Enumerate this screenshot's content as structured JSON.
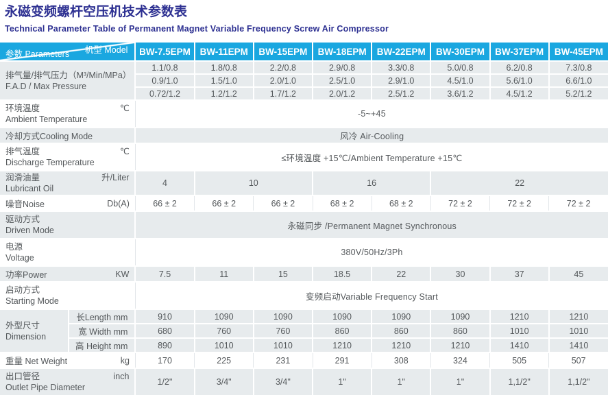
{
  "page": {
    "title": "永磁变频螺杆空压机技术参数表",
    "subtitle": "Technical Parameter Table of Permanent Magnet Variable Frequency Screw Air Compressor"
  },
  "colors": {
    "accent_cyan": "#1aa7e0",
    "title_navy": "#2e3192",
    "row_band": "#e7ebed",
    "text": "#54585b"
  },
  "table": {
    "corner": {
      "model": "机型 Model",
      "parameters": "参数 Parameters"
    },
    "models": [
      "BW-7.5EPM",
      "BW-11EPM",
      "BW-15EPM",
      "BW-18EPM",
      "BW-22EPM",
      "BW-30EPM",
      "BW-37EPM",
      "BW-45EPM"
    ],
    "rows": [
      {
        "kind": "group",
        "band": true,
        "label_zh": "排气量/排气压力（M³/Min/MPa）",
        "label_en": "F.A.D / Max Pressure",
        "unit": "",
        "subrows": [
          [
            "1.1/0.8",
            "1.8/0.8",
            "2.2/0.8",
            "2.9/0.8",
            "3.3/0.8",
            "5.0/0.8",
            "6.2/0.8",
            "7.3/0.8"
          ],
          [
            "0.9/1.0",
            "1.5/1.0",
            "2.0/1.0",
            "2.5/1.0",
            "2.9/1.0",
            "4.5/1.0",
            "5.6/1.0",
            "6.6/1.0"
          ],
          [
            "0.72/1.2",
            "1.2/1.2",
            "1.7/1.2",
            "2.0/1.2",
            "2.5/1.2",
            "3.6/1.2",
            "4.5/1.2",
            "5.2/1.2"
          ]
        ]
      },
      {
        "kind": "twoline",
        "band": false,
        "label_zh": "环境温度",
        "label_en": "Ambient Temperature",
        "unit": "℃",
        "merged": "-5~+45"
      },
      {
        "kind": "oneline-merged",
        "band": true,
        "label_zh": "冷却方式Cooling  Mode",
        "unit": "",
        "merged": "风冷 Air-Cooling"
      },
      {
        "kind": "twoline",
        "band": false,
        "label_zh": "排气温度",
        "label_en": "Discharge Temperature",
        "unit": "℃",
        "merged": "≤环境温度 +15℃/Ambient Temperature  +15℃"
      },
      {
        "kind": "spans",
        "band": true,
        "label_zh": "润滑油量",
        "label_en": "Lubricant Oil",
        "unit": "升/Liter",
        "spans": [
          {
            "text": "4",
            "span": 1
          },
          {
            "text": "10",
            "span": 2
          },
          {
            "text": "16",
            "span": 2
          },
          {
            "text": "22",
            "span": 3
          }
        ]
      },
      {
        "kind": "oneline",
        "band": false,
        "label_zh": "噪音Noise",
        "unit": "Db(A)",
        "values": [
          "66 ± 2",
          "66 ± 2",
          "66 ± 2",
          "68 ± 2",
          "68 ± 2",
          "72 ± 2",
          "72 ± 2",
          "72 ± 2"
        ]
      },
      {
        "kind": "twoline",
        "band": true,
        "label_zh": "驱动方式",
        "label_en": "Driven Mode",
        "unit": "",
        "merged": "永磁同步 /Permanent Magnet Synchronous"
      },
      {
        "kind": "twoline",
        "band": false,
        "label_zh": "电源",
        "label_en": "Voltage",
        "unit": "",
        "merged": "380V/50Hz/3Ph"
      },
      {
        "kind": "oneline",
        "band": true,
        "label_zh": "功率Power",
        "unit": "KW",
        "values": [
          "7.5",
          "11",
          "15",
          "18.5",
          "22",
          "30",
          "37",
          "45"
        ]
      },
      {
        "kind": "twoline",
        "band": false,
        "label_zh": "启动方式",
        "label_en": "Starting Mode",
        "unit": "",
        "merged": "变频启动Variable Frequency Start"
      },
      {
        "kind": "dimgroup",
        "band": true,
        "label_zh": "外型尺寸",
        "label_en": "Dimension",
        "subrows": [
          {
            "sublabel": "长Length mm",
            "values": [
              "910",
              "1090",
              "1090",
              "1090",
              "1090",
              "1090",
              "1210",
              "1210"
            ]
          },
          {
            "sublabel": "宽 Width mm",
            "values": [
              "680",
              "760",
              "760",
              "860",
              "860",
              "860",
              "1010",
              "1010"
            ]
          },
          {
            "sublabel": "高 Height mm",
            "values": [
              "890",
              "1010",
              "1010",
              "1210",
              "1210",
              "1210",
              "1410",
              "1410"
            ]
          }
        ]
      },
      {
        "kind": "oneline",
        "band": false,
        "label_zh": "重量 Net Weight",
        "unit": "kg",
        "values": [
          "170",
          "225",
          "231",
          "291",
          "308",
          "324",
          "505",
          "507"
        ]
      },
      {
        "kind": "twoline",
        "band": true,
        "label_zh": "出口管径",
        "label_en": "Outlet Pipe Diameter",
        "unit": "inch",
        "values": [
          "1/2\"",
          "3/4\"",
          "3/4\"",
          "1\"",
          "1\"",
          "1\"",
          "1,1/2\"",
          "1,1/2\""
        ]
      }
    ]
  }
}
